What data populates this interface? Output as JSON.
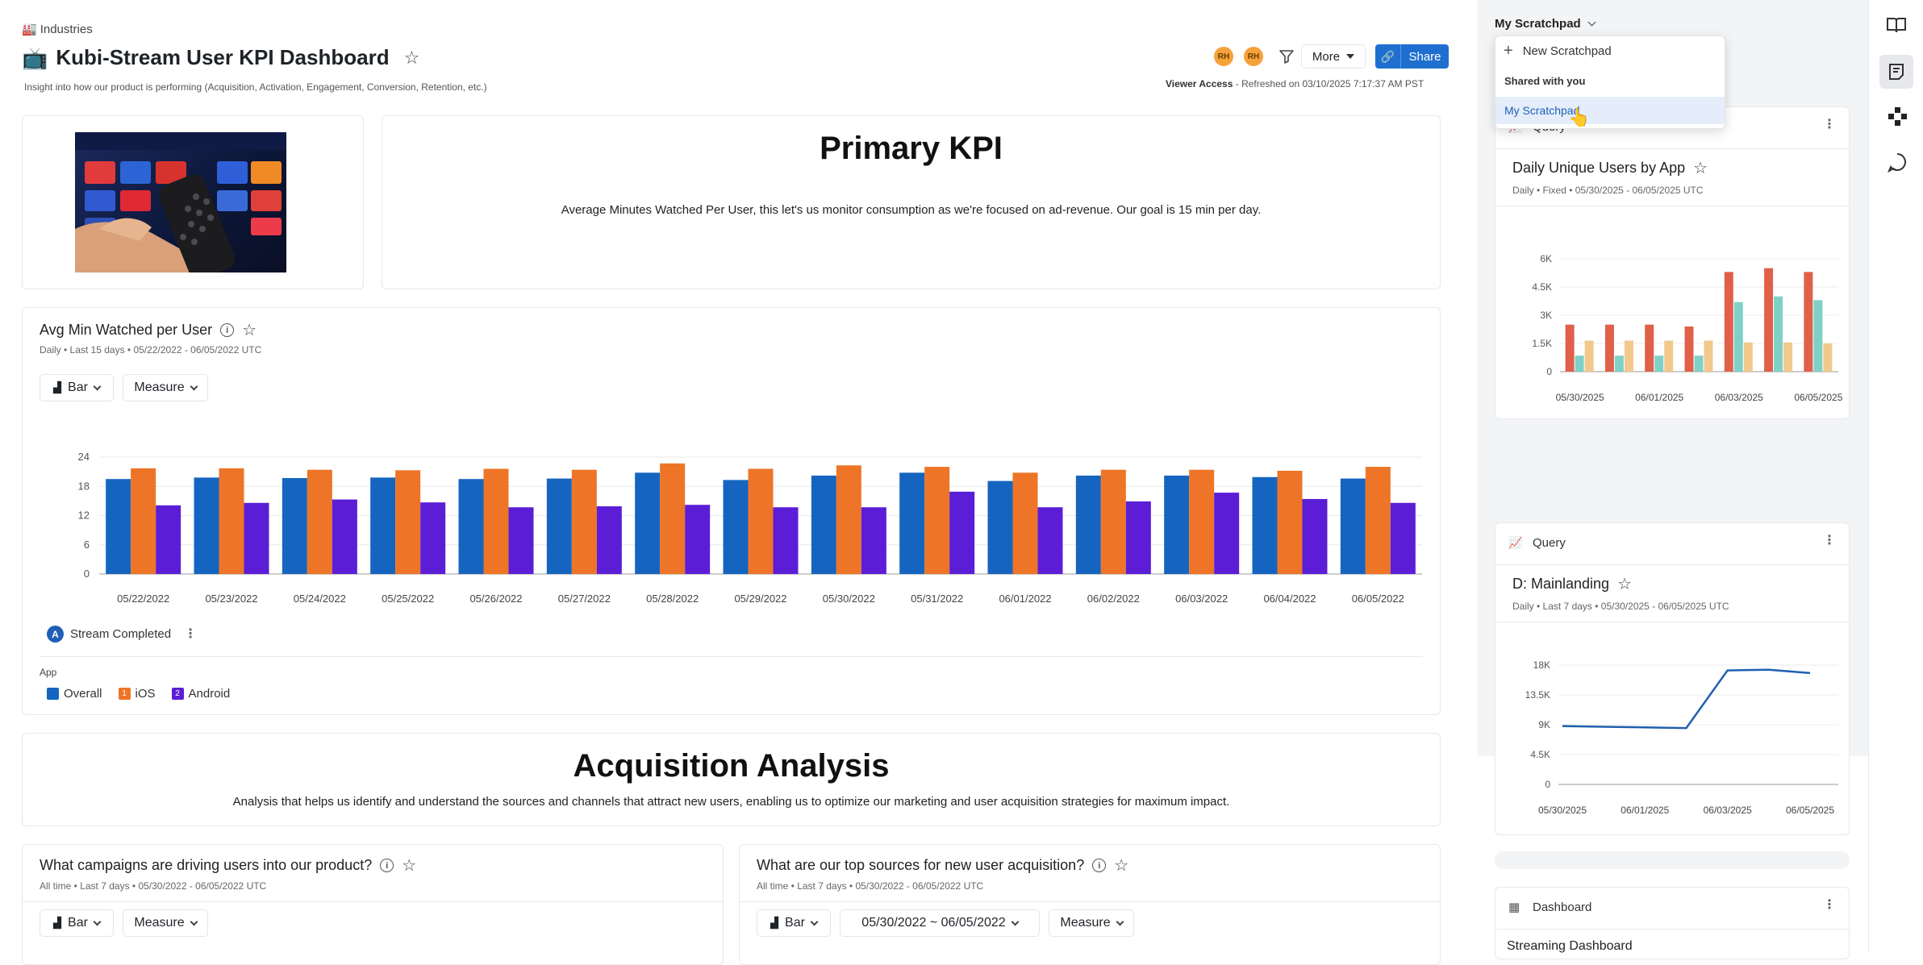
{
  "header": {
    "breadcrumb": "Industries",
    "title": "Kubi-Stream User KPI Dashboard",
    "description": "Insight into how our product is performing (Acquisition, Activation, Engagement, Conversion, Retention, etc.)",
    "avatars": [
      "RH",
      "RH"
    ],
    "more_label": "More",
    "share_label": "Share",
    "access_label": "Viewer Access",
    "refreshed": " - Refreshed on 03/10/2025 7:17:37 AM PST"
  },
  "kpi": {
    "title": "Primary KPI",
    "text": "Average Minutes Watched Per User, this let's us monitor consumption as we're focused on ad-revenue. Our goal is 15 min per day."
  },
  "avg_chart": {
    "title": "Avg Min Watched per User",
    "subtitle": "Daily • Last 15 days • 05/22/2022 - 06/05/2022 UTC",
    "chart_type_label": "Bar",
    "measure_label": "Measure",
    "metric_badge": "A",
    "metric_label": "Stream Completed",
    "legend_title": "App",
    "legend": [
      {
        "name": "Overall",
        "badge": "",
        "color": "#1565c0"
      },
      {
        "name": "iOS",
        "badge": "1",
        "color": "#ee7527"
      },
      {
        "name": "Android",
        "badge": "2",
        "color": "#5b1ed6"
      }
    ]
  },
  "acquisition": {
    "title": "Acquisition Analysis",
    "text": "Analysis that helps us identify and understand the sources and channels that attract new users, enabling us to optimize our marketing and user acquisition strategies for maximum impact."
  },
  "campaigns": {
    "title": "What campaigns are driving users into our product?",
    "subtitle": "All time • Last 7 days • 05/30/2022 - 06/05/2022 UTC",
    "chart_type_label": "Bar",
    "measure_label": "Measure"
  },
  "sources": {
    "title": "What are our top sources for new user acquisition?",
    "subtitle": "All time • Last 7 days • 05/30/2022 - 06/05/2022 UTC",
    "chart_type_label": "Bar",
    "date_range": "05/30/2022 ~ 06/05/2022",
    "measure_label": "Measure"
  },
  "scratchpad": {
    "title": "My Scratchpad",
    "menu": {
      "new_label": "New Scratchpad",
      "shared_header": "Shared with you",
      "item": "My Scratchpad"
    },
    "query1": {
      "header": "Query",
      "title": "Daily Unique Users by App",
      "subtitle": "Daily • Fixed • 05/30/2025 - 06/05/2025 UTC"
    },
    "query2": {
      "header": "Query",
      "title": "D: Mainlanding",
      "subtitle": "Daily • Last 7 days • 05/30/2025 - 06/05/2025 UTC"
    },
    "dashboard": {
      "header": "Dashboard",
      "title": "Streaming Dashboard"
    }
  },
  "chart_data": [
    {
      "type": "bar",
      "title": "Avg Min Watched per User",
      "categories": [
        "05/22/2022",
        "05/23/2022",
        "05/24/2022",
        "05/25/2022",
        "05/26/2022",
        "05/27/2022",
        "05/28/2022",
        "05/29/2022",
        "05/30/2022",
        "05/31/2022",
        "06/01/2022",
        "06/02/2022",
        "06/03/2022",
        "06/04/2022",
        "06/05/2022"
      ],
      "series": [
        {
          "name": "Overall",
          "color": "#1565c0",
          "values": [
            19.5,
            19.8,
            19.7,
            19.8,
            19.5,
            19.6,
            20.8,
            19.3,
            20.2,
            20.8,
            19.1,
            20.2,
            20.2,
            19.9,
            19.6
          ]
        },
        {
          "name": "iOS",
          "color": "#ee7527",
          "values": [
            21.7,
            21.7,
            21.4,
            21.3,
            21.6,
            21.4,
            22.7,
            21.6,
            22.3,
            22.0,
            20.8,
            21.4,
            21.4,
            21.2,
            22.0
          ]
        },
        {
          "name": "Android",
          "color": "#5b1ed6",
          "values": [
            14.1,
            14.6,
            15.3,
            14.7,
            13.7,
            13.9,
            14.2,
            13.7,
            13.7,
            16.9,
            13.7,
            14.9,
            16.7,
            15.4,
            14.6
          ]
        }
      ],
      "yticks": [
        "0",
        "6",
        "12",
        "18",
        "24"
      ],
      "ylim": [
        0,
        24
      ],
      "grid": true
    },
    {
      "type": "bar",
      "title": "Daily Unique Users by App",
      "categories": [
        "05/30/2025",
        "05/31/2025",
        "06/01/2025",
        "06/02/2025",
        "06/03/2025",
        "06/04/2025",
        "06/05/2025"
      ],
      "xticks": [
        "05/30/2025",
        "06/01/2025",
        "06/03/2025",
        "06/05/2025"
      ],
      "series": [
        {
          "color": "#e0604a",
          "values": [
            2500,
            2500,
            2500,
            2400,
            5300,
            5500,
            5300
          ]
        },
        {
          "color": "#7fd1c8",
          "values": [
            850,
            850,
            850,
            850,
            3700,
            4000,
            3800
          ]
        },
        {
          "color": "#f2c98c",
          "values": [
            1650,
            1650,
            1650,
            1650,
            1550,
            1550,
            1500
          ]
        }
      ],
      "yticks": [
        "0",
        "1.5K",
        "3K",
        "4.5K",
        "6K"
      ],
      "ylim": [
        0,
        6000
      ],
      "grid": true
    },
    {
      "type": "line",
      "title": "D: Mainlanding",
      "x": [
        "05/30/2025",
        "05/31/2025",
        "06/01/2025",
        "06/02/2025",
        "06/03/2025",
        "06/04/2025",
        "06/05/2025"
      ],
      "xticks": [
        "05/30/2025",
        "06/01/2025",
        "06/03/2025",
        "06/05/2025"
      ],
      "series": [
        {
          "color": "#1f5fb0",
          "values": [
            8800,
            8700,
            8600,
            8500,
            17200,
            17300,
            16800
          ]
        }
      ],
      "yticks": [
        "0",
        "4.5K",
        "9K",
        "13.5K",
        "18K"
      ],
      "ylim": [
        0,
        18000
      ],
      "grid": true
    }
  ]
}
